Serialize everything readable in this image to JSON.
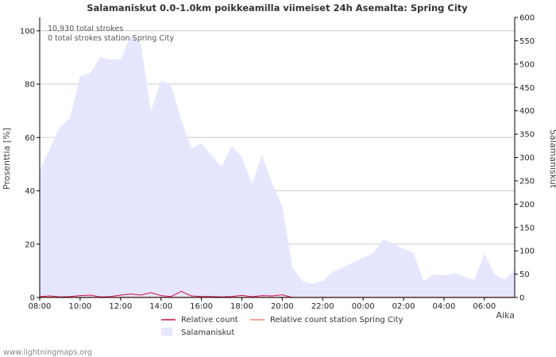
{
  "chart_data": {
    "type": "area",
    "title": "Salamaniskut 0.0-1.0km poikkeamilla viimeiset 24h Asemalta: Spring City",
    "ylabel_left": "Prosenttia   [%]",
    "ylabel_right": "Salamaniskut",
    "xlabel": "Aika",
    "ylim_left": [
      0,
      105
    ],
    "ylim_right": [
      0,
      600
    ],
    "yticks_left": [
      0,
      20,
      40,
      60,
      80,
      100
    ],
    "yticks_right": [
      0,
      50,
      100,
      150,
      200,
      250,
      300,
      350,
      400,
      450,
      500,
      550,
      600
    ],
    "x_range_hours": [
      8.0,
      31.5
    ],
    "x_ticks": [
      {
        "hour": 8,
        "label": "08:00"
      },
      {
        "hour": 10,
        "label": "10:00"
      },
      {
        "hour": 12,
        "label": "12:00"
      },
      {
        "hour": 14,
        "label": "14:00"
      },
      {
        "hour": 16,
        "label": "16:00"
      },
      {
        "hour": 18,
        "label": "18:00"
      },
      {
        "hour": 20,
        "label": "20:00"
      },
      {
        "hour": 22,
        "label": "22:00"
      },
      {
        "hour": 24,
        "label": "00:00"
      },
      {
        "hour": 26,
        "label": "02:00"
      },
      {
        "hour": 28,
        "label": "04:00"
      },
      {
        "hour": 30,
        "label": "06:00"
      }
    ],
    "annotations": [
      "10,930 total strokes",
      "0 total strokes station Spring City"
    ],
    "legend": {
      "relative": "Relative count",
      "relative_station": "Relative count station Spring City",
      "strikes": "Salamaniskut"
    },
    "colors": {
      "strikes_fill": "#e6e6ff",
      "relative": "#cc1144",
      "relative_station": "#f08a78",
      "grid": "#cccccc",
      "axis": "#000000"
    },
    "series": [
      {
        "name": "Salamaniskut",
        "axis": "right",
        "x": [
          8.0,
          8.5,
          9.0,
          9.5,
          10.0,
          10.5,
          11.0,
          11.5,
          12.0,
          12.5,
          13.0,
          13.5,
          14.0,
          14.5,
          15.0,
          15.5,
          16.0,
          16.5,
          17.0,
          17.5,
          18.0,
          18.5,
          19.0,
          19.5,
          20.0,
          20.5,
          21.0,
          21.5,
          22.0,
          22.5,
          23.0,
          23.5,
          24.0,
          24.5,
          25.0,
          25.5,
          26.0,
          26.5,
          27.0,
          27.5,
          28.0,
          28.5,
          29.0,
          29.5,
          30.0,
          30.5,
          31.0,
          31.5
        ],
        "values": [
          270,
          320,
          365,
          385,
          475,
          480,
          515,
          510,
          510,
          560,
          545,
          400,
          465,
          455,
          380,
          320,
          330,
          305,
          280,
          325,
          300,
          245,
          305,
          245,
          195,
          65,
          35,
          30,
          35,
          55,
          65,
          75,
          85,
          95,
          125,
          115,
          105,
          95,
          35,
          50,
          47,
          52,
          45,
          38,
          95,
          50,
          38,
          60
        ]
      },
      {
        "name": "Relative count",
        "axis": "left",
        "x": [
          8.0,
          8.5,
          9.0,
          9.5,
          10.0,
          10.5,
          11.0,
          11.5,
          12.0,
          12.5,
          13.0,
          13.5,
          14.0,
          14.5,
          15.0,
          15.5,
          16.0,
          16.5,
          17.0,
          17.5,
          18.0,
          18.5,
          19.0,
          19.5,
          20.0,
          20.5
        ],
        "values": [
          0.3,
          0.6,
          0.2,
          0.4,
          0.7,
          0.9,
          0.2,
          0.4,
          0.9,
          1.3,
          0.9,
          1.8,
          0.7,
          0.4,
          2.3,
          0.6,
          0.4,
          0.4,
          0.2,
          0.4,
          0.8,
          0.3,
          0.7,
          0.6,
          1.0,
          0.0
        ]
      },
      {
        "name": "Relative count station Spring City",
        "axis": "left",
        "x": [
          8.0,
          31.5
        ],
        "values": [
          0,
          0
        ]
      }
    ]
  },
  "credit": "www.lightningmaps.org"
}
